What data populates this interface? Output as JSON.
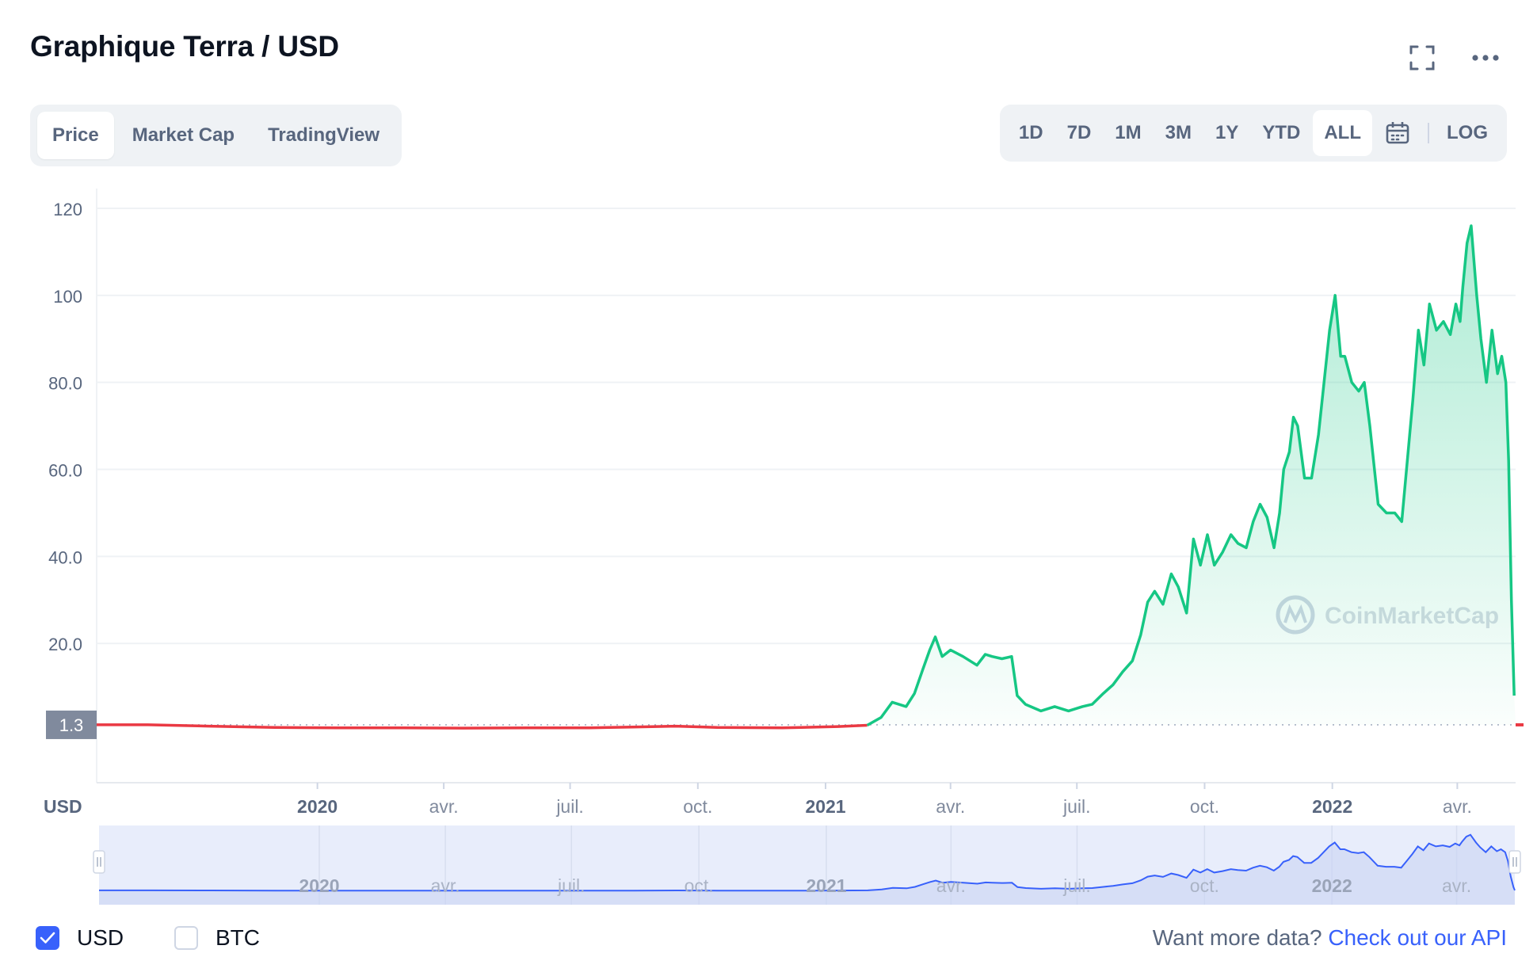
{
  "title": "Graphique Terra / USD",
  "header_icons": [
    "fullscreen-icon",
    "more-options-icon"
  ],
  "view_tabs": [
    {
      "label": "Price",
      "active": true
    },
    {
      "label": "Market Cap",
      "active": false
    },
    {
      "label": "TradingView",
      "active": false
    }
  ],
  "ranges": [
    {
      "label": "1D",
      "active": false
    },
    {
      "label": "7D",
      "active": false
    },
    {
      "label": "1M",
      "active": false
    },
    {
      "label": "3M",
      "active": false
    },
    {
      "label": "1Y",
      "active": false
    },
    {
      "label": "YTD",
      "active": false
    },
    {
      "label": "ALL",
      "active": true
    }
  ],
  "calendar_icon": "calendar-icon",
  "log_label": "LOG",
  "colors": {
    "up_line": "#16c784",
    "down_line": "#ea3943",
    "accent": "#3861fb",
    "navigator_fill": "#e8edfb",
    "text_muted": "#58667e"
  },
  "chart_data": {
    "type": "area",
    "watermark": "CoinMarketCap",
    "currency_label": "USD",
    "ylim": [
      -12,
      122
    ],
    "yticks": [
      20,
      40,
      60,
      80,
      100,
      120
    ],
    "ytick_labels": [
      "20.0",
      "40.0",
      "60.0",
      "80.0",
      "100",
      "120"
    ],
    "reference_value": 1.3,
    "reference_label": "1.3",
    "xlim": [
      "2019-07-26",
      "2022-05-13"
    ],
    "xticks": [
      {
        "date": "2020-01-01",
        "label": "2020",
        "bold": true
      },
      {
        "date": "2020-04-01",
        "label": "avr.",
        "bold": false
      },
      {
        "date": "2020-07-01",
        "label": "juil.",
        "bold": false
      },
      {
        "date": "2020-10-01",
        "label": "oct.",
        "bold": false
      },
      {
        "date": "2021-01-01",
        "label": "2021",
        "bold": true
      },
      {
        "date": "2021-04-01",
        "label": "avr.",
        "bold": false
      },
      {
        "date": "2021-07-01",
        "label": "juil.",
        "bold": false
      },
      {
        "date": "2021-10-01",
        "label": "oct.",
        "bold": false
      },
      {
        "date": "2022-01-01",
        "label": "2022",
        "bold": true
      },
      {
        "date": "2022-04-01",
        "label": "avr.",
        "bold": false
      }
    ],
    "series": [
      {
        "x": [
          "2019-07-26",
          "2019-09-01",
          "2019-10-15",
          "2019-12-01",
          "2020-01-15",
          "2020-03-01",
          "2020-04-15",
          "2020-06-01",
          "2020-07-15",
          "2020-08-15",
          "2020-09-15",
          "2020-10-15",
          "2020-12-01",
          "2021-01-10",
          "2021-01-31",
          "2021-02-10",
          "2021-02-18",
          "2021-02-28",
          "2021-03-06",
          "2021-03-12",
          "2021-03-17",
          "2021-03-21",
          "2021-03-26",
          "2021-04-01",
          "2021-04-10",
          "2021-04-20",
          "2021-04-26",
          "2021-05-01",
          "2021-05-08",
          "2021-05-15",
          "2021-05-19",
          "2021-05-25",
          "2021-06-05",
          "2021-06-15",
          "2021-06-25",
          "2021-07-05",
          "2021-07-12",
          "2021-07-20",
          "2021-07-27",
          "2021-08-03",
          "2021-08-10",
          "2021-08-16",
          "2021-08-21",
          "2021-08-26",
          "2021-09-01",
          "2021-09-07",
          "2021-09-12",
          "2021-09-18",
          "2021-09-23",
          "2021-09-28",
          "2021-10-03",
          "2021-10-08",
          "2021-10-14",
          "2021-10-20",
          "2021-10-25",
          "2021-10-31",
          "2021-11-05",
          "2021-11-10",
          "2021-11-15",
          "2021-11-20",
          "2021-11-24",
          "2021-11-27",
          "2021-12-01",
          "2021-12-04",
          "2021-12-07",
          "2021-12-12",
          "2021-12-17",
          "2021-12-22",
          "2021-12-26",
          "2021-12-30",
          "2022-01-03",
          "2022-01-07",
          "2022-01-10",
          "2022-01-15",
          "2022-01-20",
          "2022-01-24",
          "2022-01-28",
          "2022-02-03",
          "2022-02-09",
          "2022-02-15",
          "2022-02-20",
          "2022-02-24",
          "2022-02-28",
          "2022-03-04",
          "2022-03-08",
          "2022-03-12",
          "2022-03-17",
          "2022-03-22",
          "2022-03-27",
          "2022-03-31",
          "2022-04-03",
          "2022-04-05",
          "2022-04-08",
          "2022-04-11",
          "2022-04-15",
          "2022-04-18",
          "2022-04-22",
          "2022-04-26",
          "2022-04-30",
          "2022-05-03",
          "2022-05-06",
          "2022-05-08",
          "2022-05-10",
          "2022-05-12",
          "2022-05-13"
        ],
        "values": [
          1.3,
          1.3,
          1.0,
          0.7,
          0.6,
          0.6,
          0.55,
          0.6,
          0.6,
          0.8,
          1.0,
          0.7,
          0.6,
          0.9,
          1.2,
          3.0,
          6.5,
          5.5,
          8.5,
          14.0,
          18.5,
          21.5,
          17.0,
          18.5,
          17.0,
          15.0,
          17.5,
          17.0,
          16.5,
          17.0,
          8.0,
          6.0,
          4.5,
          5.5,
          4.5,
          5.5,
          6.0,
          8.5,
          10.5,
          13.5,
          16.0,
          22.0,
          29.5,
          32.0,
          29.0,
          36.0,
          33.0,
          27.0,
          44.0,
          38.0,
          45.0,
          38.0,
          41.0,
          45.0,
          43.0,
          42.0,
          48.0,
          52.0,
          49.0,
          42.0,
          50.0,
          60.0,
          64.0,
          72.0,
          70.0,
          58.0,
          58.0,
          68.0,
          80.0,
          92.0,
          100.0,
          86.0,
          86.0,
          80.0,
          78.0,
          80.0,
          70.0,
          52.0,
          50.0,
          50.0,
          48.0,
          62.0,
          76.0,
          92.0,
          84.0,
          98.0,
          92.0,
          94.0,
          91.0,
          98.0,
          94.0,
          102.0,
          112.0,
          116.0,
          100.0,
          90.0,
          80.0,
          92.0,
          82.0,
          86.0,
          80.0,
          62.0,
          30.0,
          8.0,
          1.3
        ]
      }
    ],
    "navigator_labels": [
      "2020",
      "avr.",
      "juil.",
      "oct.",
      "2021",
      "avr.",
      "juil.",
      "oct.",
      "2022",
      "avr."
    ]
  },
  "footer": {
    "currency_options": [
      {
        "label": "USD",
        "checked": true
      },
      {
        "label": "BTC",
        "checked": false
      }
    ],
    "api_prompt": "Want more data?",
    "api_link": "Check out our API"
  }
}
